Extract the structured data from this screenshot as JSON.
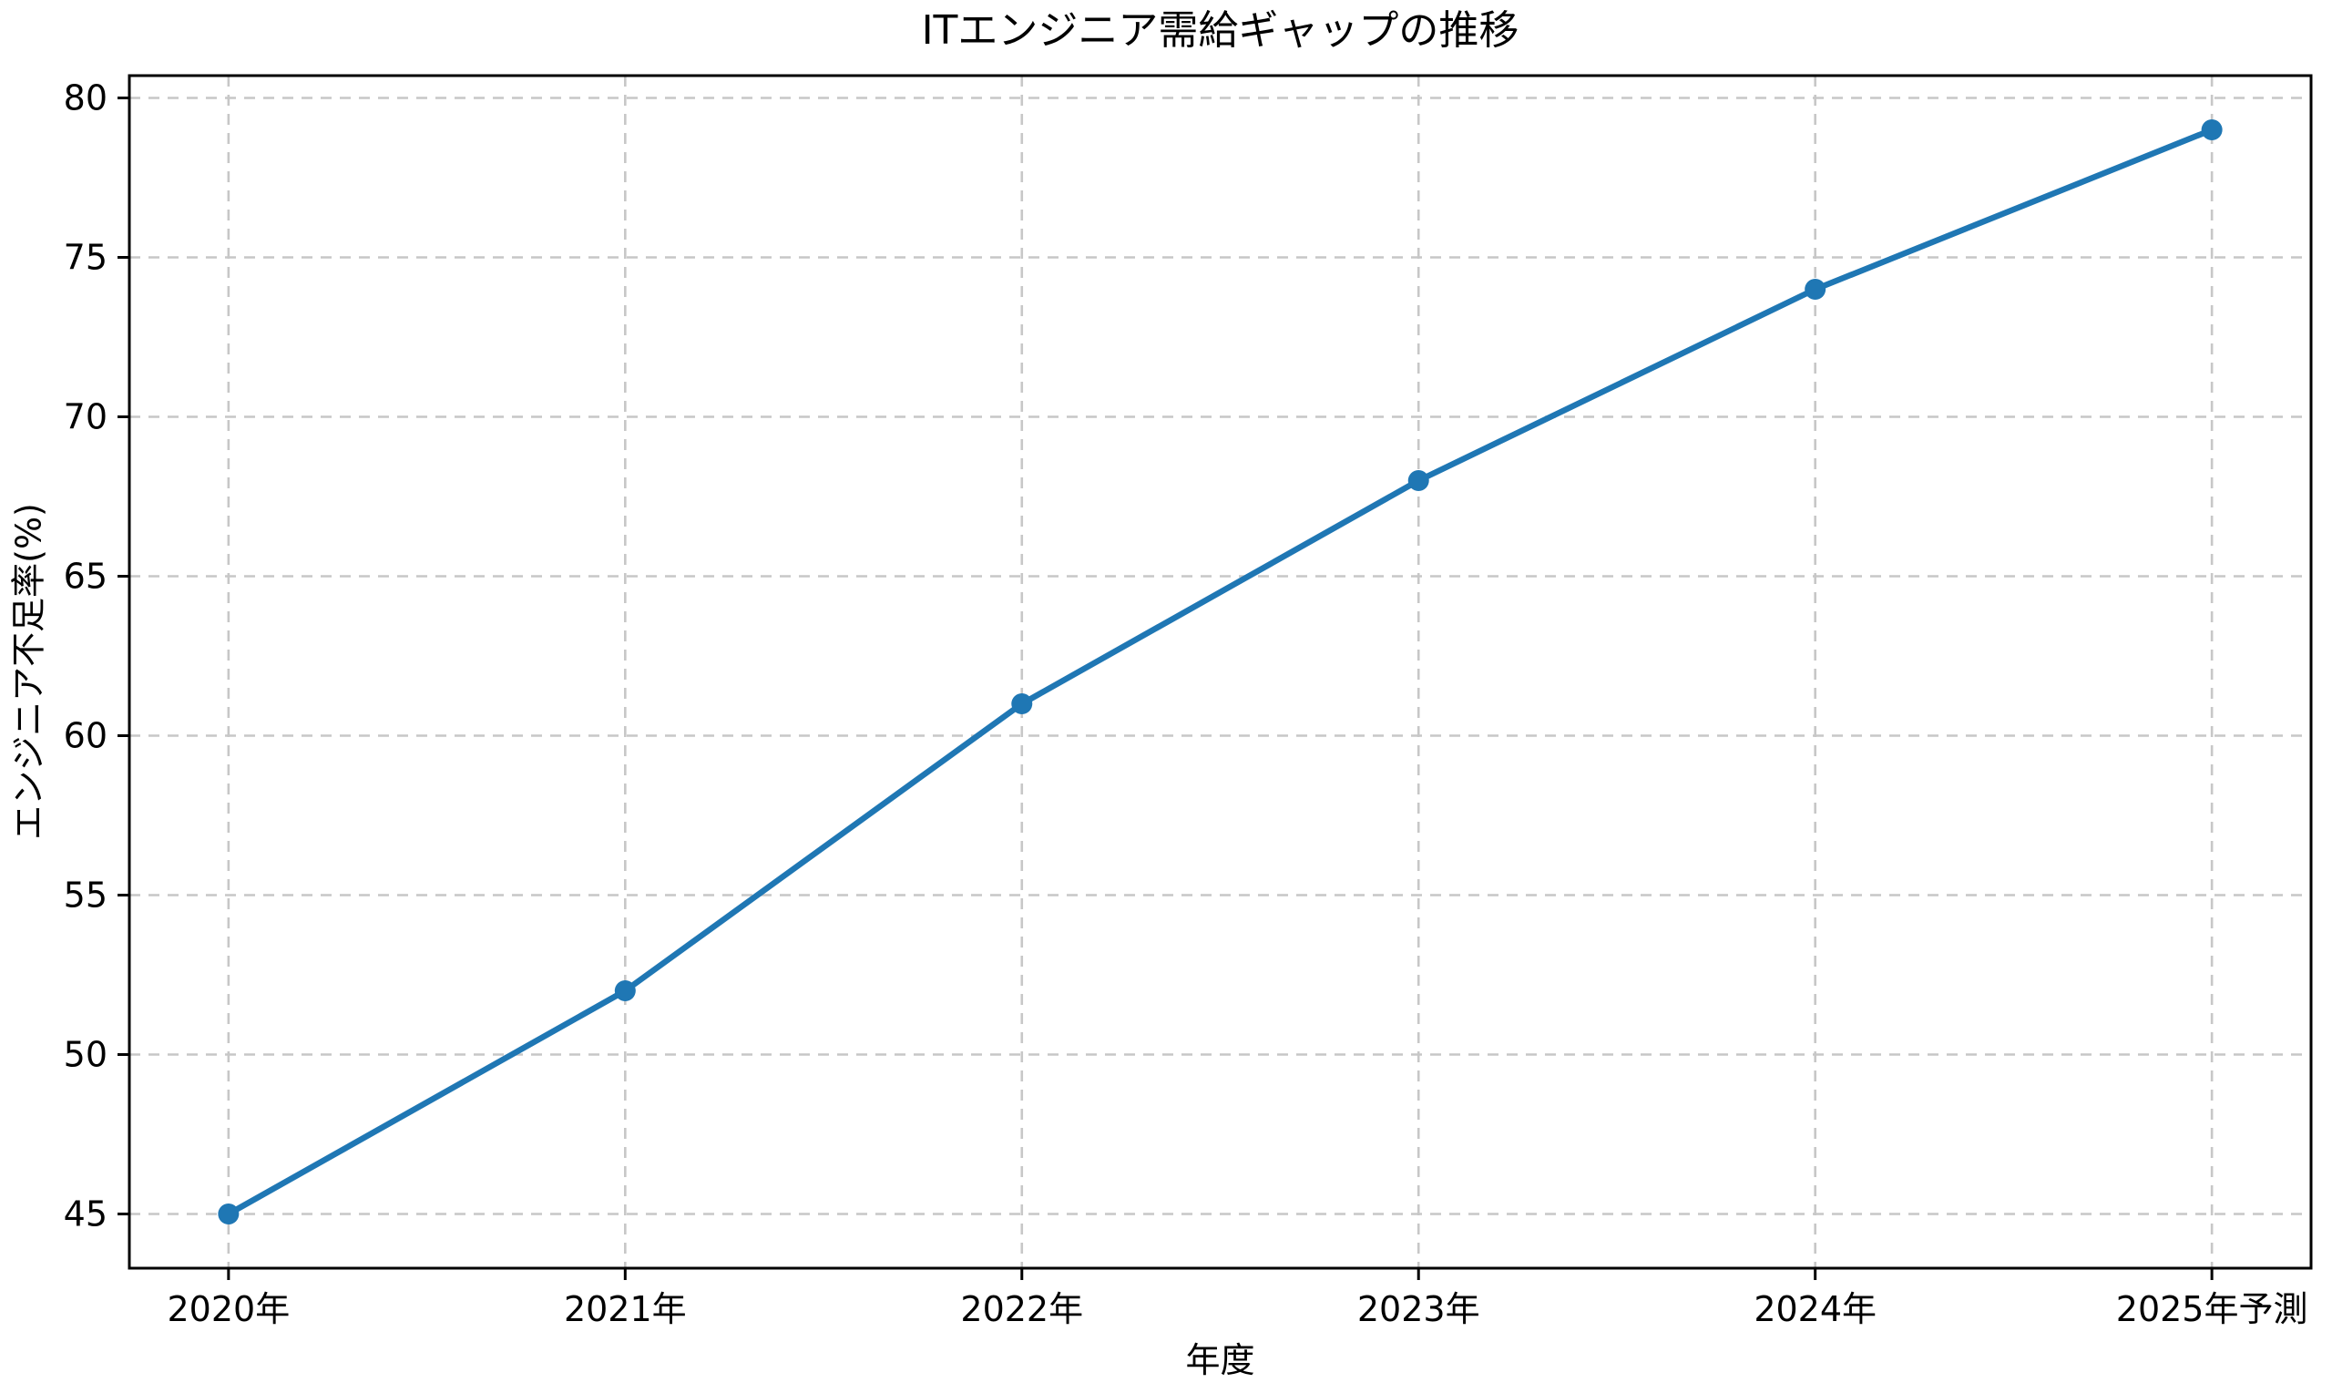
{
  "chart_data": {
    "type": "line",
    "title": "ITエンジニア需給ギャップの推移",
    "xlabel": "年度",
    "ylabel": "エンジニア不足率(%)",
    "categories": [
      "2020年",
      "2021年",
      "2022年",
      "2023年",
      "2024年",
      "2025年予測"
    ],
    "series": [
      {
        "name": "",
        "values": [
          45,
          52,
          61,
          68,
          74,
          79
        ]
      }
    ],
    "yticks": [
      45,
      50,
      55,
      60,
      65,
      70,
      75,
      80
    ],
    "ylim": [
      43.3,
      80.7
    ],
    "grid": true,
    "grid_style": "dashed",
    "legend": "none",
    "colors": {
      "line": "#1f77b4",
      "marker": "#1f77b4",
      "grid": "#c7c7c7",
      "spine": "#000000",
      "text": "#000000",
      "background": "#ffffff"
    }
  }
}
